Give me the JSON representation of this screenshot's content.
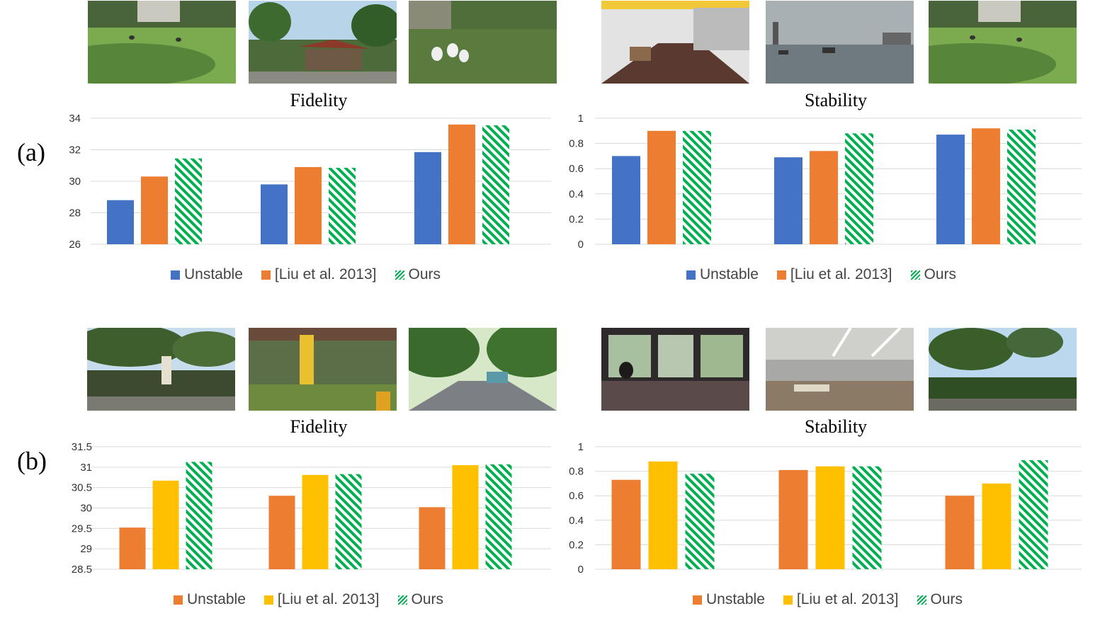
{
  "rows": [
    {
      "label": "(a)",
      "charts": [
        {
          "title": "Fidelity",
          "thumbs": [
            "lawn-birds",
            "tropical-hut",
            "pond-pelicans"
          ],
          "ticks": [
            "26",
            "28",
            "30",
            "32",
            "34"
          ],
          "legend": [
            "Unstable",
            "[Liu et al. 2013]",
            "Ours"
          ]
        },
        {
          "title": "Stability",
          "thumbs": [
            "corridor",
            "harbor-boats",
            "lawn-birds"
          ],
          "ticks": [
            "0",
            "0.2",
            "0.4",
            "0.6",
            "0.8",
            "1"
          ],
          "legend": [
            "Unstable",
            "[Liu et al. 2013]",
            "Ours"
          ]
        }
      ]
    },
    {
      "label": "(b)",
      "charts": [
        {
          "title": "Fidelity",
          "thumbs": [
            "park-sign",
            "bus-stop",
            "road-trees"
          ],
          "ticks": [
            "28.5",
            "29",
            "29.5",
            "30",
            "30.5",
            "31",
            "31.5"
          ],
          "legend": [
            "Unstable",
            "[Liu et al. 2013]",
            "Ours"
          ]
        },
        {
          "title": "Stability",
          "thumbs": [
            "bus-interior",
            "office-hall",
            "garden-trees"
          ],
          "ticks": [
            "0",
            "0.2",
            "0.4",
            "0.6",
            "0.8",
            "1"
          ],
          "legend": [
            "Unstable",
            "[Liu et al. 2013]",
            "Ours"
          ]
        }
      ]
    }
  ],
  "chart_data": [
    {
      "type": "bar",
      "title": "Fidelity",
      "ylim": [
        26,
        34
      ],
      "categories": [
        "1",
        "2",
        "3"
      ],
      "series": [
        {
          "name": "Unstable",
          "values": [
            28.8,
            29.8,
            31.85
          ],
          "color": "#4472C4",
          "pattern": "solid"
        },
        {
          "name": "[Liu et al. 2013]",
          "values": [
            30.3,
            30.9,
            33.6
          ],
          "color": "#ED7D31",
          "pattern": "solid"
        },
        {
          "name": "Ours",
          "values": [
            31.45,
            30.85,
            33.55
          ],
          "color": "#00B050",
          "pattern": "hatch"
        }
      ]
    },
    {
      "type": "bar",
      "title": "Stability",
      "ylim": [
        0,
        1
      ],
      "categories": [
        "1",
        "2",
        "3"
      ],
      "series": [
        {
          "name": "Unstable",
          "values": [
            0.7,
            0.69,
            0.87
          ],
          "color": "#4472C4",
          "pattern": "solid"
        },
        {
          "name": "[Liu et al. 2013]",
          "values": [
            0.9,
            0.74,
            0.92
          ],
          "color": "#ED7D31",
          "pattern": "solid"
        },
        {
          "name": "Ours",
          "values": [
            0.9,
            0.88,
            0.91
          ],
          "color": "#00B050",
          "pattern": "hatch"
        }
      ]
    },
    {
      "type": "bar",
      "title": "Fidelity",
      "ylim": [
        28.5,
        31.5
      ],
      "categories": [
        "1",
        "2",
        "3"
      ],
      "series": [
        {
          "name": "Unstable",
          "values": [
            29.52,
            30.3,
            30.02
          ],
          "color": "#ED7D31",
          "pattern": "solid"
        },
        {
          "name": "[Liu et al. 2013]",
          "values": [
            30.67,
            30.81,
            31.05
          ],
          "color": "#FFC000",
          "pattern": "solid"
        },
        {
          "name": "Ours",
          "values": [
            31.13,
            30.83,
            31.07
          ],
          "color": "#00B050",
          "pattern": "hatch"
        }
      ]
    },
    {
      "type": "bar",
      "title": "Stability",
      "ylim": [
        0,
        1
      ],
      "categories": [
        "1",
        "2",
        "3"
      ],
      "series": [
        {
          "name": "Unstable",
          "values": [
            0.73,
            0.81,
            0.6
          ],
          "color": "#ED7D31",
          "pattern": "solid"
        },
        {
          "name": "[Liu et al. 2013]",
          "values": [
            0.88,
            0.84,
            0.7
          ],
          "color": "#FFC000",
          "pattern": "solid"
        },
        {
          "name": "Ours",
          "values": [
            0.78,
            0.84,
            0.89
          ],
          "color": "#00B050",
          "pattern": "hatch"
        }
      ]
    }
  ]
}
